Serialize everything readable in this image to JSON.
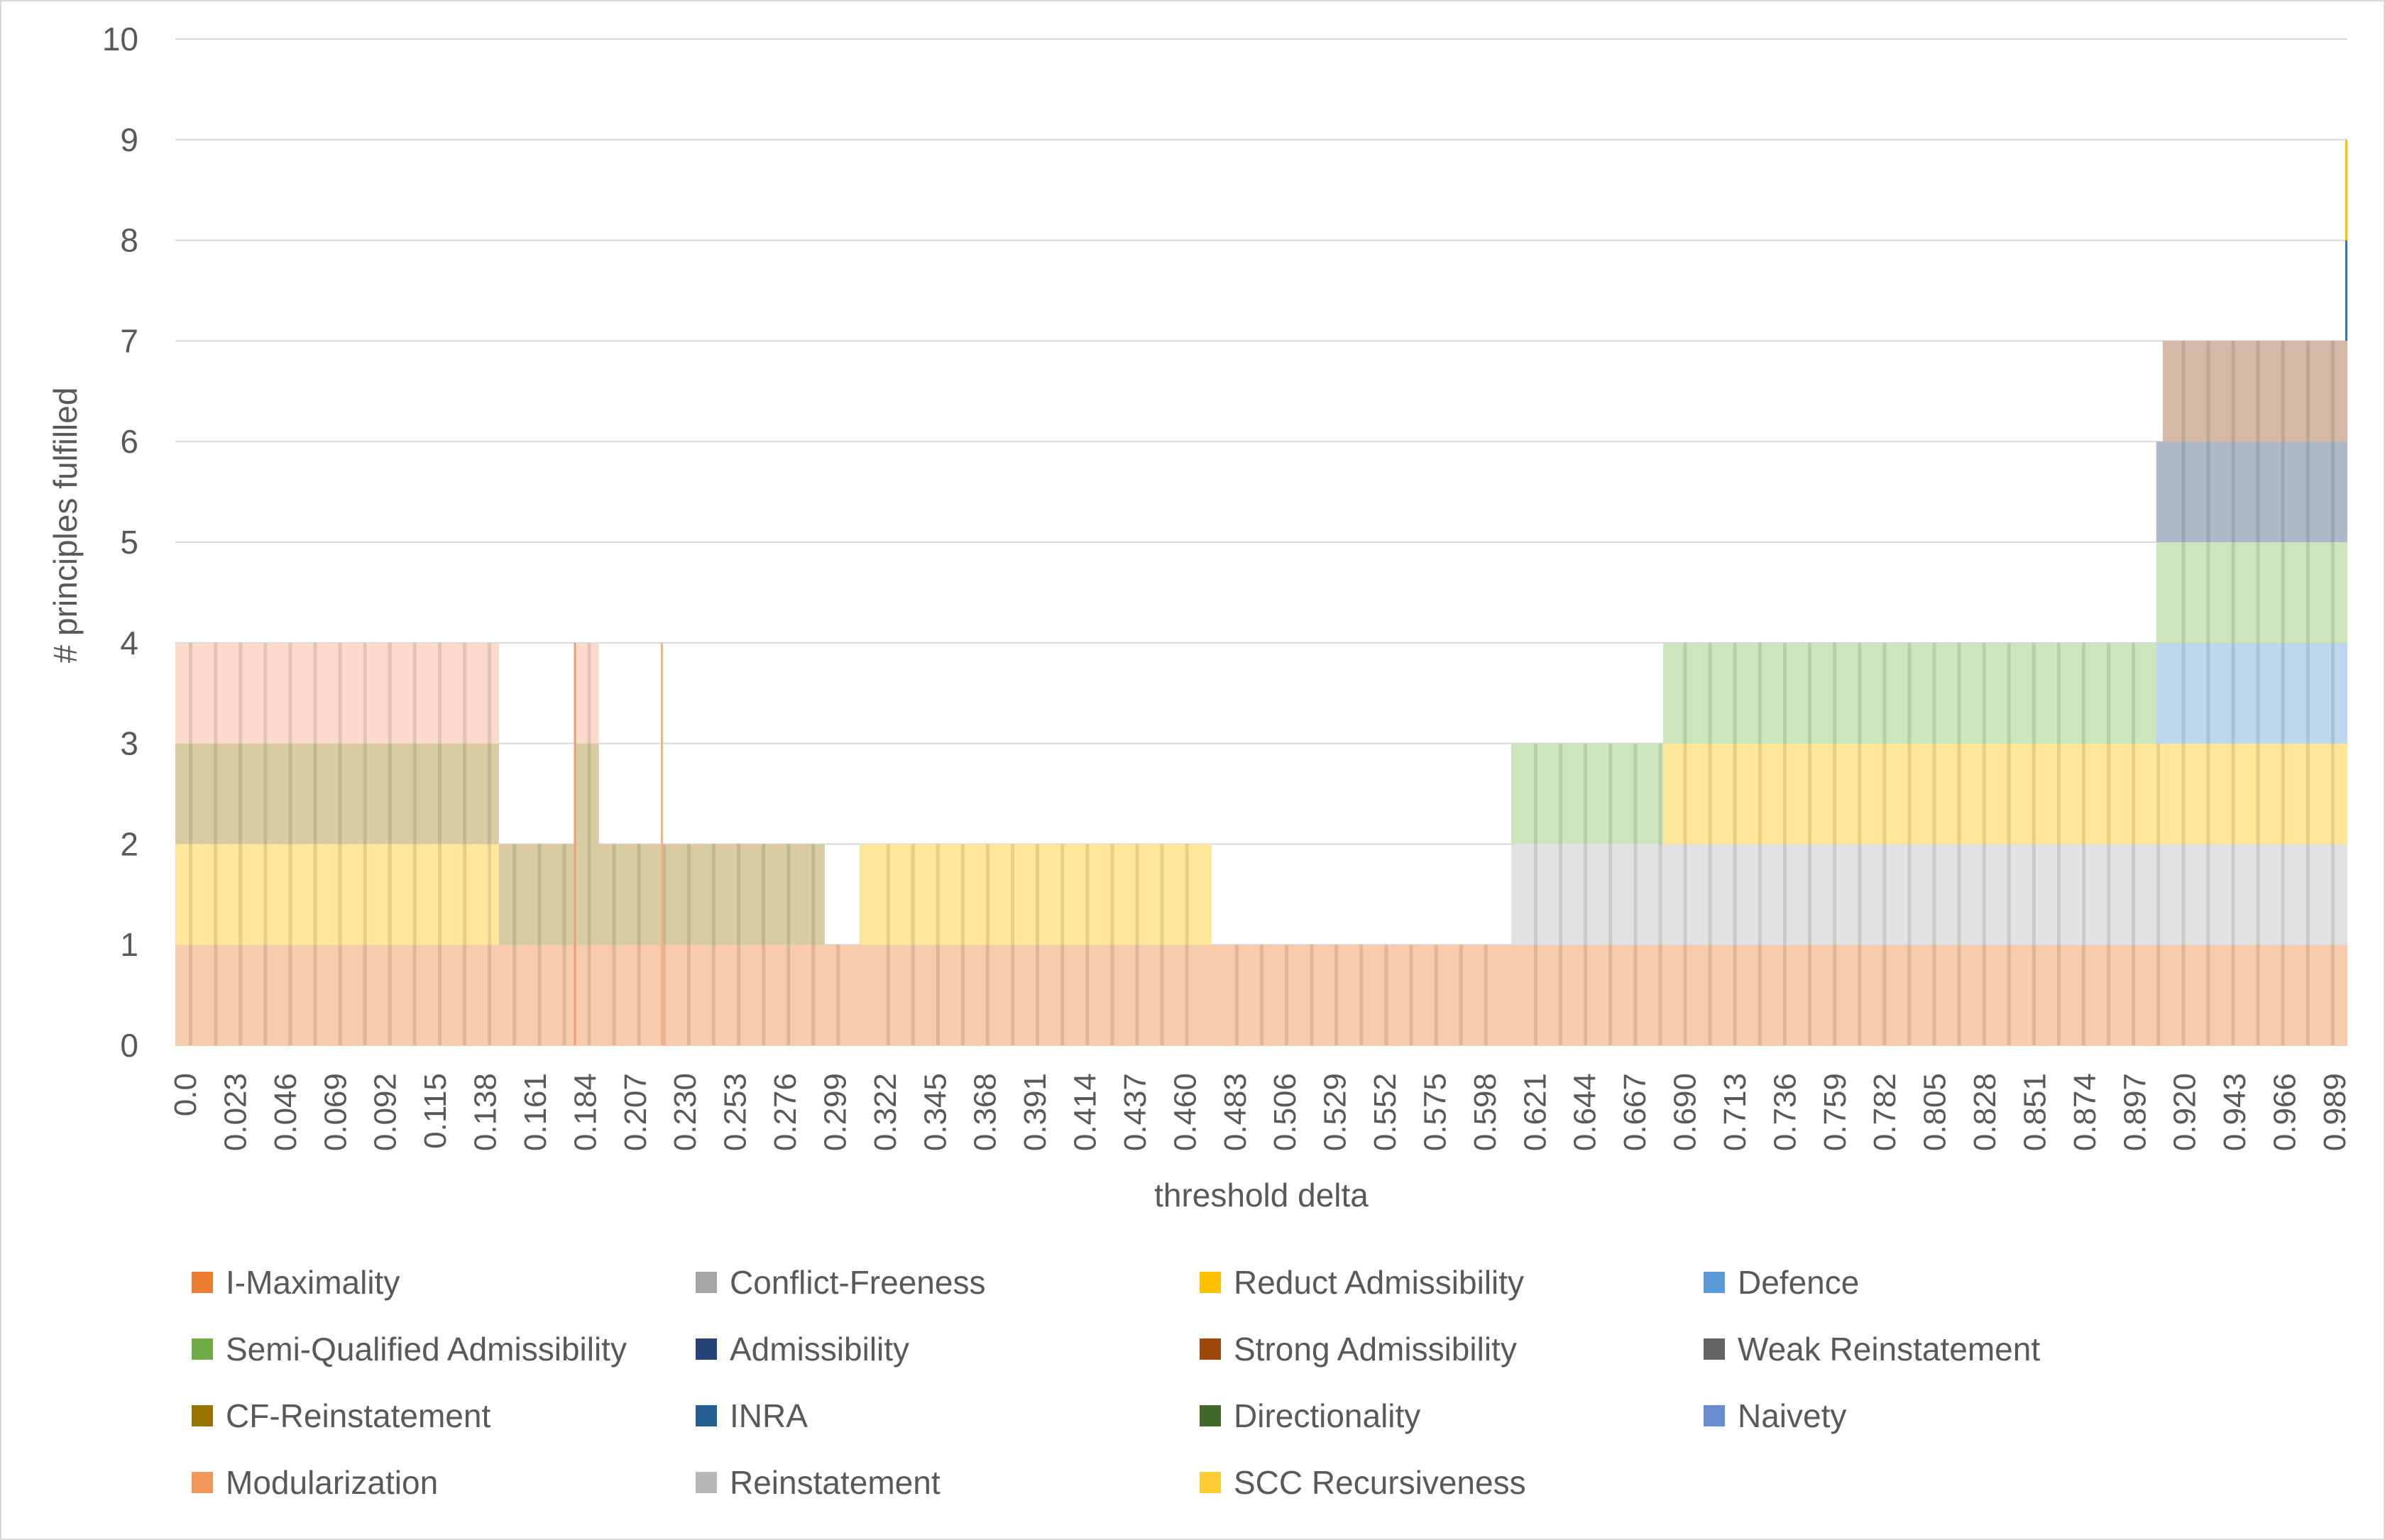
{
  "chart_data": {
    "type": "area",
    "title": "",
    "xlabel": "threshold delta",
    "ylabel": "# principles fulfilled",
    "ylim": [
      0,
      10
    ],
    "yticks": [
      0,
      1,
      2,
      3,
      4,
      5,
      6,
      7,
      8,
      9,
      10
    ],
    "grid": true,
    "legend_position": "bottom",
    "xlim": [
      0,
      1
    ],
    "x_tick_labels": [
      "0.0",
      "0.023",
      "0.046",
      "0.069",
      "0.092",
      "0.115",
      "0.138",
      "0.161",
      "0.184",
      "0.207",
      "0.230",
      "0.253",
      "0.276",
      "0.299",
      "0.322",
      "0.345",
      "0.368",
      "0.391",
      "0.414",
      "0.437",
      "0.460",
      "0.483",
      "0.506",
      "0.529",
      "0.552",
      "0.575",
      "0.598",
      "0.621",
      "0.644",
      "0.667",
      "0.690",
      "0.713",
      "0.736",
      "0.759",
      "0.782",
      "0.805",
      "0.828",
      "0.851",
      "0.874",
      "0.897",
      "0.920",
      "0.943",
      "0.966",
      "0.989"
    ],
    "series": [
      {
        "name": "I-Maximality",
        "color": "#F4A77F",
        "segments": [
          [
            0.0,
            1.0
          ]
        ]
      },
      {
        "name": "Conflict-Freeness",
        "color": "#A5A5A5",
        "segments": []
      },
      {
        "name": "Reduct Admissibility",
        "color": "#FFD44F",
        "segments": [
          [
            0.0,
            0.149
          ],
          [
            0.315,
            0.477
          ],
          [
            0.685,
            1.0
          ]
        ]
      },
      {
        "name": "Defence",
        "color": "#9DC3E6",
        "segments": [
          [
            0.912,
            1.0
          ]
        ]
      },
      {
        "name": "Semi-Qualified Admissibility",
        "color": "#A9D18E",
        "segments": [
          [
            0.615,
            1.0
          ]
        ]
      },
      {
        "name": "Admissibility",
        "color": "#8497B0",
        "segments": [
          [
            0.912,
            1.0
          ]
        ]
      },
      {
        "name": "Strong Admissibility",
        "color": "#C9A38C",
        "segments": [
          [
            0.915,
            1.0
          ]
        ]
      },
      {
        "name": "Weak Reinstatement",
        "color": "#595959",
        "segments": []
      },
      {
        "name": "CF-Reinstatement",
        "color": "#BEAF7A",
        "segments": [
          [
            0.0,
            0.299
          ]
        ]
      },
      {
        "name": "INRA",
        "color": "#2E75B6",
        "segments": []
      },
      {
        "name": "Directionality",
        "color": "#548235",
        "segments": []
      },
      {
        "name": "Naivety",
        "color": "#8FAADC",
        "segments": []
      },
      {
        "name": "Modularization",
        "color": "#F8C8B0",
        "segments": [
          [
            0.0,
            0.149
          ],
          [
            0.184,
            0.195
          ],
          [
            0.223,
            0.225
          ]
        ]
      },
      {
        "name": "Reinstatement",
        "color": "#DCDCDC",
        "segments": [
          [
            0.615,
            1.0
          ]
        ]
      },
      {
        "name": "SCC Recursiveness",
        "color": "#FFE699",
        "segments": []
      }
    ],
    "stack_levels": [
      {
        "x0": 0.0,
        "x1": 0.149,
        "value": 4
      },
      {
        "x0": 0.149,
        "x1": 0.184,
        "value": 2
      },
      {
        "x0": 0.184,
        "x1": 0.195,
        "value": 4
      },
      {
        "x0": 0.195,
        "x1": 0.299,
        "value": 2
      },
      {
        "x0": 0.299,
        "x1": 0.315,
        "value": 1
      },
      {
        "x0": 0.315,
        "x1": 0.477,
        "value": 2
      },
      {
        "x0": 0.477,
        "x1": 0.615,
        "value": 1
      },
      {
        "x0": 0.615,
        "x1": 0.685,
        "value": 3
      },
      {
        "x0": 0.685,
        "x1": 0.912,
        "value": 4
      },
      {
        "x0": 0.912,
        "x1": 0.915,
        "value": 6
      },
      {
        "x0": 0.915,
        "x1": 0.999,
        "value": 7
      },
      {
        "x0": 0.999,
        "x1": 1.0,
        "value": 9
      }
    ],
    "bands": [
      {
        "x0": 0.0,
        "x1": 0.149,
        "y0": 0,
        "y1": 1,
        "color": "#F8CBAD"
      },
      {
        "x0": 0.0,
        "x1": 0.149,
        "y0": 1,
        "y1": 2,
        "color": "#FFE699"
      },
      {
        "x0": 0.0,
        "x1": 0.149,
        "y0": 2,
        "y1": 3,
        "color": "#D9CCA3"
      },
      {
        "x0": 0.0,
        "x1": 0.149,
        "y0": 3,
        "y1": 4,
        "color": "#FBDACB"
      },
      {
        "x0": 0.149,
        "x1": 0.299,
        "y0": 0,
        "y1": 1,
        "color": "#F8CBAD"
      },
      {
        "x0": 0.149,
        "x1": 0.299,
        "y0": 1,
        "y1": 2,
        "color": "#D9CCA3"
      },
      {
        "x0": 0.184,
        "x1": 0.195,
        "y0": 2,
        "y1": 3,
        "color": "#D9CCA3"
      },
      {
        "x0": 0.184,
        "x1": 0.195,
        "y0": 3,
        "y1": 4,
        "color": "#FBDACB"
      },
      {
        "x0": 0.299,
        "x1": 0.315,
        "y0": 0,
        "y1": 1,
        "color": "#F8CBAD"
      },
      {
        "x0": 0.315,
        "x1": 0.477,
        "y0": 0,
        "y1": 1,
        "color": "#F8CBAD"
      },
      {
        "x0": 0.315,
        "x1": 0.477,
        "y0": 1,
        "y1": 2,
        "color": "#FFE699"
      },
      {
        "x0": 0.477,
        "x1": 0.615,
        "y0": 0,
        "y1": 1,
        "color": "#F8CBAD"
      },
      {
        "x0": 0.615,
        "x1": 1.0,
        "y0": 0,
        "y1": 1,
        "color": "#F8CBAD"
      },
      {
        "x0": 0.615,
        "x1": 1.0,
        "y0": 1,
        "y1": 2,
        "color": "#E2E2E2"
      },
      {
        "x0": 0.615,
        "x1": 0.685,
        "y0": 2,
        "y1": 3,
        "color": "#CDE5BD"
      },
      {
        "x0": 0.685,
        "x1": 1.0,
        "y0": 2,
        "y1": 3,
        "color": "#FFE699"
      },
      {
        "x0": 0.685,
        "x1": 0.912,
        "y0": 3,
        "y1": 4,
        "color": "#CDE5BD"
      },
      {
        "x0": 0.912,
        "x1": 1.0,
        "y0": 3,
        "y1": 4,
        "color": "#BDD7EE"
      },
      {
        "x0": 0.912,
        "x1": 1.0,
        "y0": 4,
        "y1": 5,
        "color": "#CDE5BD"
      },
      {
        "x0": 0.912,
        "x1": 1.0,
        "y0": 5,
        "y1": 6,
        "color": "#ADB9CA"
      },
      {
        "x0": 0.915,
        "x1": 1.0,
        "y0": 6,
        "y1": 7,
        "color": "#D5B9A6"
      },
      {
        "x0": 0.999,
        "x1": 1.0,
        "y0": 7,
        "y1": 8,
        "color": "#2E75B6"
      },
      {
        "x0": 0.999,
        "x1": 1.0,
        "y0": 8,
        "y1": 9,
        "color": "#FFC000"
      }
    ],
    "spikes": [
      {
        "x": 0.184,
        "y0": 0,
        "y1": 4,
        "color": "#E8A07C"
      },
      {
        "x": 0.224,
        "y0": 0,
        "y1": 4,
        "color": "#F4B183"
      }
    ]
  },
  "legend": {
    "items": [
      {
        "label": "I-Maximality",
        "color": "#ED7D31"
      },
      {
        "label": "Conflict-Freeness",
        "color": "#A5A5A5"
      },
      {
        "label": "Reduct Admissibility",
        "color": "#FFC000"
      },
      {
        "label": "Defence",
        "color": "#5B9BD5"
      },
      {
        "label": "Semi-Qualified Admissibility",
        "color": "#70AD47"
      },
      {
        "label": "Admissibility",
        "color": "#264478"
      },
      {
        "label": "Strong Admissibility",
        "color": "#9E480E"
      },
      {
        "label": "Weak Reinstatement",
        "color": "#636363"
      },
      {
        "label": "CF-Reinstatement",
        "color": "#997300"
      },
      {
        "label": "INRA",
        "color": "#255E91"
      },
      {
        "label": "Directionality",
        "color": "#43682B"
      },
      {
        "label": "Naivety",
        "color": "#698ED0"
      },
      {
        "label": "Modularization",
        "color": "#F1975A"
      },
      {
        "label": "Reinstatement",
        "color": "#B7B7B7"
      },
      {
        "label": "SCC Recursiveness",
        "color": "#FFCD33"
      }
    ]
  }
}
